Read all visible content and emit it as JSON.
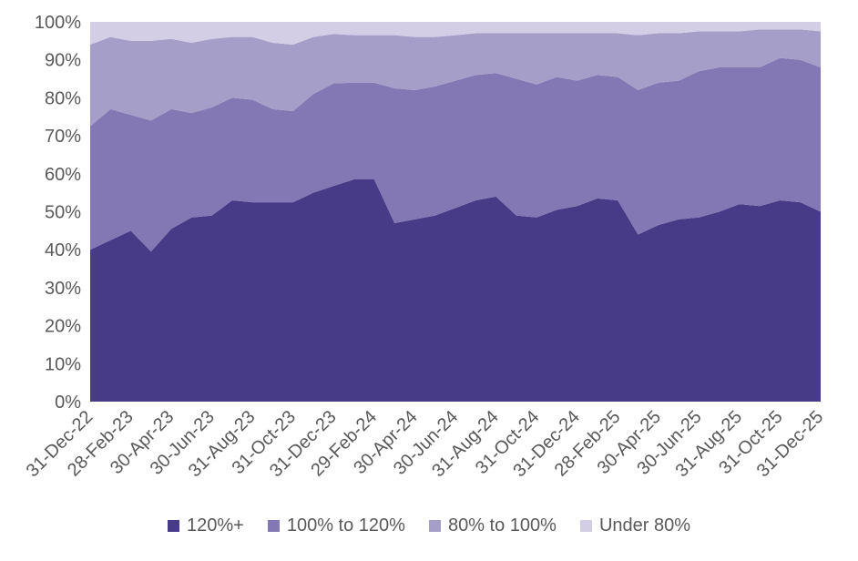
{
  "chart_data": {
    "type": "area",
    "stacked": true,
    "title": "",
    "xlabel": "",
    "ylabel": "",
    "ylim": [
      0,
      100
    ],
    "yticks": [
      "0%",
      "10%",
      "20%",
      "30%",
      "40%",
      "50%",
      "60%",
      "70%",
      "80%",
      "90%",
      "100%"
    ],
    "x": [
      "31-Dec-22",
      "31-Jan-23",
      "28-Feb-23",
      "31-Mar-23",
      "30-Apr-23",
      "31-May-23",
      "30-Jun-23",
      "31-Jul-23",
      "31-Aug-23",
      "30-Sep-23",
      "31-Oct-23",
      "30-Nov-23",
      "31-Dec-23",
      "31-Jan-24",
      "29-Feb-24",
      "31-Mar-24",
      "30-Apr-24",
      "31-May-24",
      "30-Jun-24",
      "31-Jul-24",
      "31-Aug-24",
      "30-Sep-24",
      "31-Oct-24",
      "30-Nov-24",
      "31-Dec-24",
      "31-Jan-25",
      "28-Feb-25",
      "31-Mar-25",
      "30-Apr-25",
      "31-May-25",
      "30-Jun-25",
      "31-Jul-25",
      "31-Aug-25",
      "30-Sep-25",
      "31-Oct-25",
      "30-Nov-25",
      "31-Dec-25"
    ],
    "xticks": [
      "31-Dec-22",
      "28-Feb-23",
      "30-Apr-23",
      "30-Jun-23",
      "31-Aug-23",
      "31-Oct-23",
      "31-Dec-23",
      "29-Feb-24",
      "30-Apr-24",
      "30-Jun-24",
      "31-Aug-24",
      "31-Oct-24",
      "31-Dec-24",
      "28-Feb-25",
      "30-Apr-25",
      "30-Jun-25",
      "31-Aug-25",
      "31-Oct-25",
      "31-Dec-25"
    ],
    "series": [
      {
        "name": "120%+",
        "color": "#473b87",
        "values": [
          40,
          42.5,
          45,
          39.5,
          45.5,
          48.5,
          49,
          53,
          52.5,
          52.5,
          52.5,
          55,
          56.8,
          58.5,
          58.5,
          47,
          48,
          49,
          51,
          53,
          54,
          49,
          48.5,
          50.5,
          51.5,
          53.5,
          53,
          44,
          46.5,
          48,
          48.5,
          50,
          52,
          51.5,
          53,
          52.5,
          50
        ]
      },
      {
        "name": "100% to 120%",
        "color": "#8377b4",
        "values": [
          32.5,
          34.5,
          30.5,
          34.5,
          31.5,
          27.5,
          28.5,
          27,
          27,
          24.5,
          24,
          26,
          27,
          25.5,
          25.5,
          35.5,
          34,
          34,
          33.5,
          33,
          32.5,
          36,
          35,
          35,
          33,
          32.5,
          32.5,
          38,
          37.5,
          36.5,
          38.5,
          38,
          36,
          36.5,
          37.5,
          37.5,
          38
        ]
      },
      {
        "name": "80% to 100%",
        "color": "#a59ec9",
        "values": [
          21.5,
          19,
          19.5,
          21,
          18.5,
          18.5,
          18,
          16,
          16.5,
          17.5,
          17.5,
          15,
          13,
          12.5,
          12.5,
          14,
          14,
          13,
          12,
          11,
          10.5,
          12,
          13.5,
          11.5,
          12.5,
          11,
          11.5,
          14.5,
          13,
          12.5,
          10.5,
          9.5,
          9.5,
          10,
          7.5,
          8,
          9.5
        ]
      },
      {
        "name": "Under 80%",
        "color": "#d3cee6",
        "values": [
          6,
          4,
          5,
          5,
          4.5,
          5.5,
          4.5,
          4,
          4,
          5.5,
          6,
          4,
          3.2,
          3.5,
          3.5,
          3.5,
          4,
          4,
          3.5,
          3,
          3,
          3,
          3,
          3,
          3,
          3,
          3,
          3.5,
          3,
          3,
          2.5,
          2.5,
          2.5,
          2,
          2,
          2,
          2.5
        ]
      }
    ],
    "legend_position": "bottom",
    "grid": false
  }
}
